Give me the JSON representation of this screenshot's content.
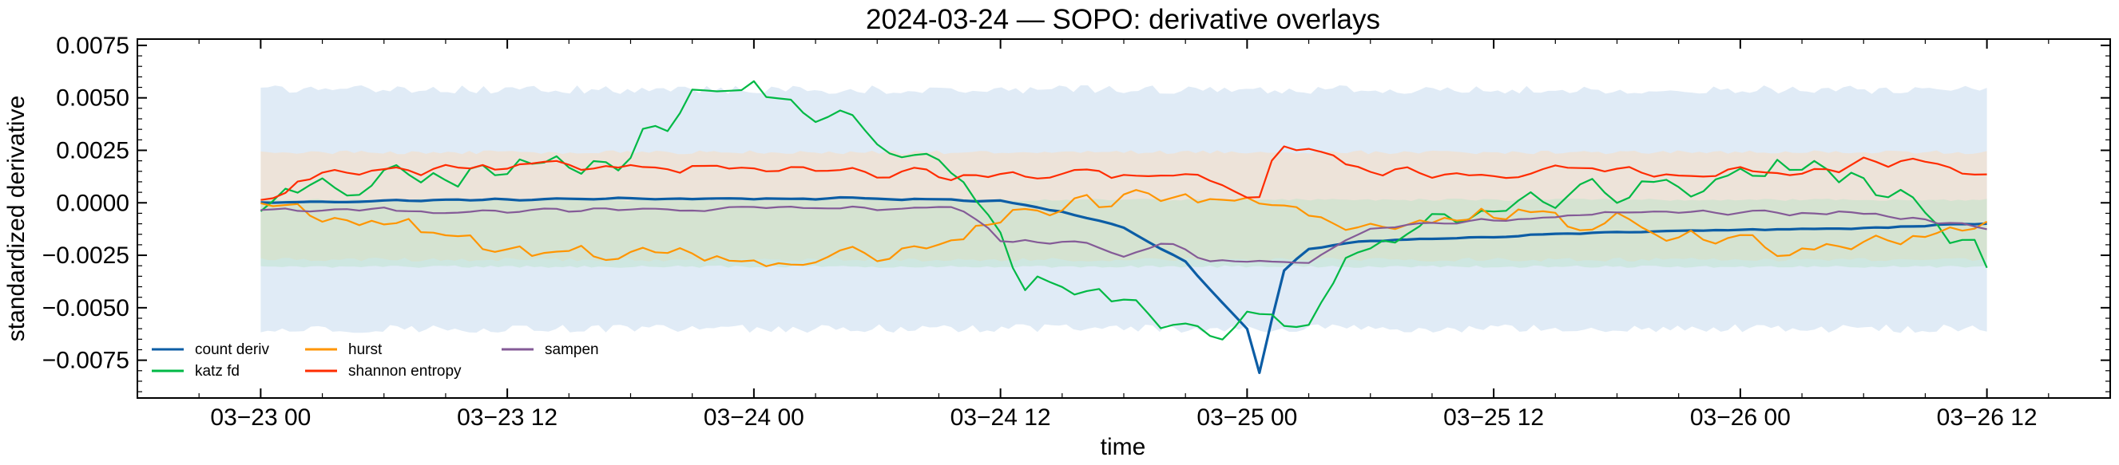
{
  "chart_data": {
    "type": "line",
    "title": "2024-03-24 — SOPO: derivative overlays",
    "xlabel": "time",
    "ylabel": "standardized derivative",
    "x_range": [
      "2024-03-22 18:00",
      "2024-03-26 18:00"
    ],
    "ylim": [
      -0.0093,
      0.0078
    ],
    "grid": false,
    "legend_position": "lower-left",
    "x_ticks": [
      {
        "value": "2024-03-23 00:00",
        "label": "03−23 00"
      },
      {
        "value": "2024-03-23 12:00",
        "label": "03−23 12"
      },
      {
        "value": "2024-03-24 00:00",
        "label": "03−24 00"
      },
      {
        "value": "2024-03-24 12:00",
        "label": "03−24 12"
      },
      {
        "value": "2024-03-25 00:00",
        "label": "03−25 00"
      },
      {
        "value": "2024-03-25 12:00",
        "label": "03−25 12"
      },
      {
        "value": "2024-03-26 00:00",
        "label": "03−26 00"
      },
      {
        "value": "2024-03-26 12:00",
        "label": "03−26 12"
      }
    ],
    "y_ticks": [
      {
        "value": 0.0075,
        "label": "0.0075"
      },
      {
        "value": 0.005,
        "label": "0.0050"
      },
      {
        "value": 0.0025,
        "label": "0.0025"
      },
      {
        "value": 0.0,
        "label": "0.0000"
      },
      {
        "value": -0.0025,
        "label": "−0.0025"
      },
      {
        "value": -0.005,
        "label": "−0.0050"
      },
      {
        "value": -0.0075,
        "label": "−0.0075"
      }
    ],
    "bands": [
      {
        "color": "#c6dbef",
        "opacity": 0.55,
        "x": [
          "2024-03-23 00:00",
          "2024-03-26 12:00"
        ],
        "upper": 0.0056,
        "lower": -0.0062
      },
      {
        "color": "#fdd9b5",
        "opacity": 0.45,
        "x": [
          "2024-03-23 00:00",
          "2024-03-26 12:00"
        ],
        "upper": 0.0025,
        "lower": -0.0028
      },
      {
        "color": "#b8e2c8",
        "opacity": 0.45,
        "x": [
          "2024-03-23 00:00",
          "2024-03-26 12:00"
        ],
        "upper": 0.0002,
        "lower": -0.0031
      }
    ],
    "series": [
      {
        "name": "count deriv",
        "color": "#0c5da5",
        "width": 3.2,
        "jitter": 6e-05,
        "points": [
          [
            "2024-03-23 00:00",
            0.0
          ],
          [
            "2024-03-23 06:00",
            0.0001
          ],
          [
            "2024-03-23 18:00",
            0.0002
          ],
          [
            "2024-03-24 06:00",
            0.0002
          ],
          [
            "2024-03-24 12:00",
            0.0001
          ],
          [
            "2024-03-24 15:00",
            -0.0004
          ],
          [
            "2024-03-24 18:00",
            -0.0012
          ],
          [
            "2024-03-24 21:00",
            -0.0028
          ],
          [
            "2024-03-24 23:00",
            -0.005
          ],
          [
            "2024-03-25 00:00",
            -0.006
          ],
          [
            "2024-03-25 00:30",
            -0.0084
          ],
          [
            "2024-03-25 01:00",
            -0.007
          ],
          [
            "2024-03-25 01:30",
            -0.0035
          ],
          [
            "2024-03-25 03:00",
            -0.0022
          ],
          [
            "2024-03-25 06:00",
            -0.0018
          ],
          [
            "2024-03-25 12:00",
            -0.0016
          ],
          [
            "2024-03-25 18:00",
            -0.0014
          ],
          [
            "2024-03-26 00:00",
            -0.0013
          ],
          [
            "2024-03-26 06:00",
            -0.0012
          ],
          [
            "2024-03-26 12:00",
            -0.001
          ]
        ]
      },
      {
        "name": "katz fd",
        "color": "#00b945",
        "width": 2.2,
        "jitter": 0.0009,
        "points": [
          [
            "2024-03-23 00:00",
            0.0
          ],
          [
            "2024-03-23 06:00",
            0.001
          ],
          [
            "2024-03-23 12:00",
            0.0015
          ],
          [
            "2024-03-23 18:00",
            0.0025
          ],
          [
            "2024-03-23 21:00",
            0.005
          ],
          [
            "2024-03-24 00:00",
            0.0055
          ],
          [
            "2024-03-24 06:00",
            0.003
          ],
          [
            "2024-03-24 10:00",
            0.0012
          ],
          [
            "2024-03-24 13:00",
            -0.0035
          ],
          [
            "2024-03-24 18:00",
            -0.0045
          ],
          [
            "2024-03-24 20:00",
            -0.0058
          ],
          [
            "2024-03-24 23:00",
            -0.0062
          ],
          [
            "2024-03-25 01:00",
            -0.005
          ],
          [
            "2024-03-25 03:00",
            -0.0062
          ],
          [
            "2024-03-25 05:00",
            -0.0022
          ],
          [
            "2024-03-25 09:00",
            -0.0005
          ],
          [
            "2024-03-25 15:00",
            0.0002
          ],
          [
            "2024-03-25 21:00",
            0.0008
          ],
          [
            "2024-03-26 04:00",
            0.0018
          ],
          [
            "2024-03-26 08:00",
            0.0008
          ],
          [
            "2024-03-26 12:00",
            -0.003
          ]
        ]
      },
      {
        "name": "hurst",
        "color": "#ff9500",
        "width": 2.2,
        "jitter": 0.0007,
        "points": [
          [
            "2024-03-23 00:00",
            0.0
          ],
          [
            "2024-03-23 06:00",
            -0.001
          ],
          [
            "2024-03-23 12:00",
            -0.0025
          ],
          [
            "2024-03-23 18:00",
            -0.0022
          ],
          [
            "2024-03-24 00:00",
            -0.0028
          ],
          [
            "2024-03-24 06:00",
            -0.0025
          ],
          [
            "2024-03-24 12:00",
            -0.001
          ],
          [
            "2024-03-24 18:00",
            0.0001
          ],
          [
            "2024-03-25 00:00",
            0.0003
          ],
          [
            "2024-03-25 06:00",
            -0.0012
          ],
          [
            "2024-03-25 12:00",
            -0.0008
          ],
          [
            "2024-03-25 18:00",
            -0.001
          ],
          [
            "2024-03-26 00:00",
            -0.002
          ],
          [
            "2024-03-26 06:00",
            -0.0018
          ],
          [
            "2024-03-26 12:00",
            -0.0008
          ]
        ]
      },
      {
        "name": "shannon entropy",
        "color": "#ff2c00",
        "width": 2.2,
        "jitter": 0.00035,
        "points": [
          [
            "2024-03-23 00:00",
            0.0
          ],
          [
            "2024-03-23 03:00",
            0.0014
          ],
          [
            "2024-03-23 12:00",
            0.0016
          ],
          [
            "2024-03-23 18:00",
            0.0018
          ],
          [
            "2024-03-24 00:00",
            0.0017
          ],
          [
            "2024-03-24 06:00",
            0.0014
          ],
          [
            "2024-03-24 12:00",
            0.0012
          ],
          [
            "2024-03-24 18:00",
            0.0013
          ],
          [
            "2024-03-24 22:00",
            0.0012
          ],
          [
            "2024-03-25 00:30",
            -0.0002
          ],
          [
            "2024-03-25 01:30",
            0.003
          ],
          [
            "2024-03-25 06:00",
            0.0015
          ],
          [
            "2024-03-25 12:00",
            0.0014
          ],
          [
            "2024-03-25 18:00",
            0.0016
          ],
          [
            "2024-03-26 00:00",
            0.0014
          ],
          [
            "2024-03-26 08:00",
            0.002
          ],
          [
            "2024-03-26 12:00",
            0.0011
          ]
        ]
      },
      {
        "name": "sampen",
        "color": "#845b97",
        "width": 2.2,
        "jitter": 0.00015,
        "points": [
          [
            "2024-03-23 00:00",
            -0.0003
          ],
          [
            "2024-03-23 12:00",
            -0.0004
          ],
          [
            "2024-03-24 00:00",
            -0.0003
          ],
          [
            "2024-03-24 10:00",
            -0.0002
          ],
          [
            "2024-03-24 12:00",
            -0.0018
          ],
          [
            "2024-03-24 16:00",
            -0.002
          ],
          [
            "2024-03-24 18:00",
            -0.0025
          ],
          [
            "2024-03-24 20:00",
            -0.0018
          ],
          [
            "2024-03-24 22:00",
            -0.0028
          ],
          [
            "2024-03-25 03:00",
            -0.0028
          ],
          [
            "2024-03-25 06:00",
            -0.0012
          ],
          [
            "2024-03-25 18:00",
            -0.0005
          ],
          [
            "2024-03-26 06:00",
            -0.0005
          ],
          [
            "2024-03-26 12:00",
            -0.0012
          ]
        ]
      }
    ],
    "legend": {
      "entries": [
        "count deriv",
        "katz fd",
        "hurst",
        "shannon entropy",
        "sampen"
      ]
    }
  }
}
